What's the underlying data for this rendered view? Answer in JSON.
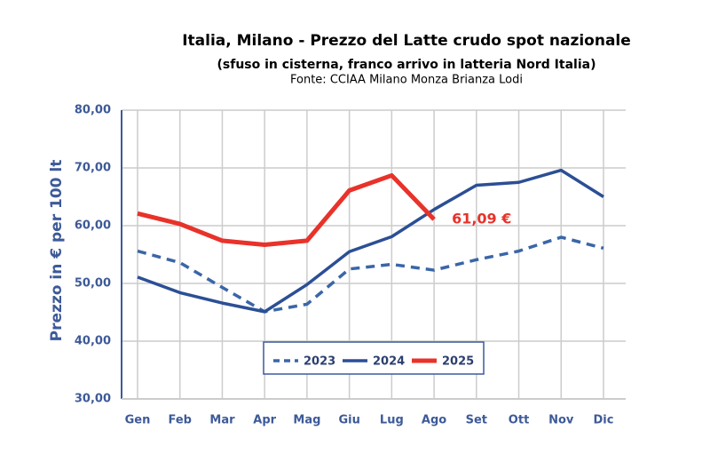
{
  "chart_data": {
    "type": "line",
    "title": "Italia, Milano - Prezzo del Latte crudo spot nazionale",
    "subtitle": "(sfuso in cisterna, franco arrivo in latteria Nord Italia)",
    "source": "Fonte: CCIAA Milano Monza Brianza Lodi",
    "ylabel": "Prezzo in € per 100 lt",
    "categories": [
      "Gen",
      "Feb",
      "Mar",
      "Apr",
      "Mag",
      "Giu",
      "Lug",
      "Ago",
      "Set",
      "Ott",
      "Nov",
      "Dic"
    ],
    "series": [
      {
        "name": "2023",
        "color": "#3a66a8",
        "dash": true,
        "values": [
          55.6,
          53.6,
          49.3,
          45.1,
          46.4,
          52.5,
          53.3,
          52.3,
          54.1,
          55.6,
          58.0,
          56.1
        ]
      },
      {
        "name": "2024",
        "color": "#2b4f95",
        "dash": false,
        "values": [
          51.1,
          48.4,
          46.6,
          45.1,
          49.8,
          55.5,
          58.1,
          62.8,
          67.0,
          67.5,
          69.6,
          65.0
        ]
      },
      {
        "name": "2025",
        "color": "#e8322a",
        "dash": false,
        "values": [
          62.1,
          60.3,
          57.4,
          56.7,
          57.4,
          66.1,
          68.7,
          61.09,
          null,
          null,
          null,
          null
        ],
        "value_labels": [
          null,
          null,
          null,
          null,
          null,
          null,
          null,
          "61,09 €",
          null,
          null,
          null,
          null
        ]
      }
    ],
    "ylim": [
      30,
      80
    ],
    "yticks": [
      {
        "value": 30,
        "label": "30,00"
      },
      {
        "value": 40,
        "label": "40,00"
      },
      {
        "value": 50,
        "label": "50,00"
      },
      {
        "value": 60,
        "label": "60,00"
      },
      {
        "value": 70,
        "label": "70,00"
      },
      {
        "value": 80,
        "label": "80,00"
      }
    ],
    "grid": true,
    "legend": "lower center"
  }
}
